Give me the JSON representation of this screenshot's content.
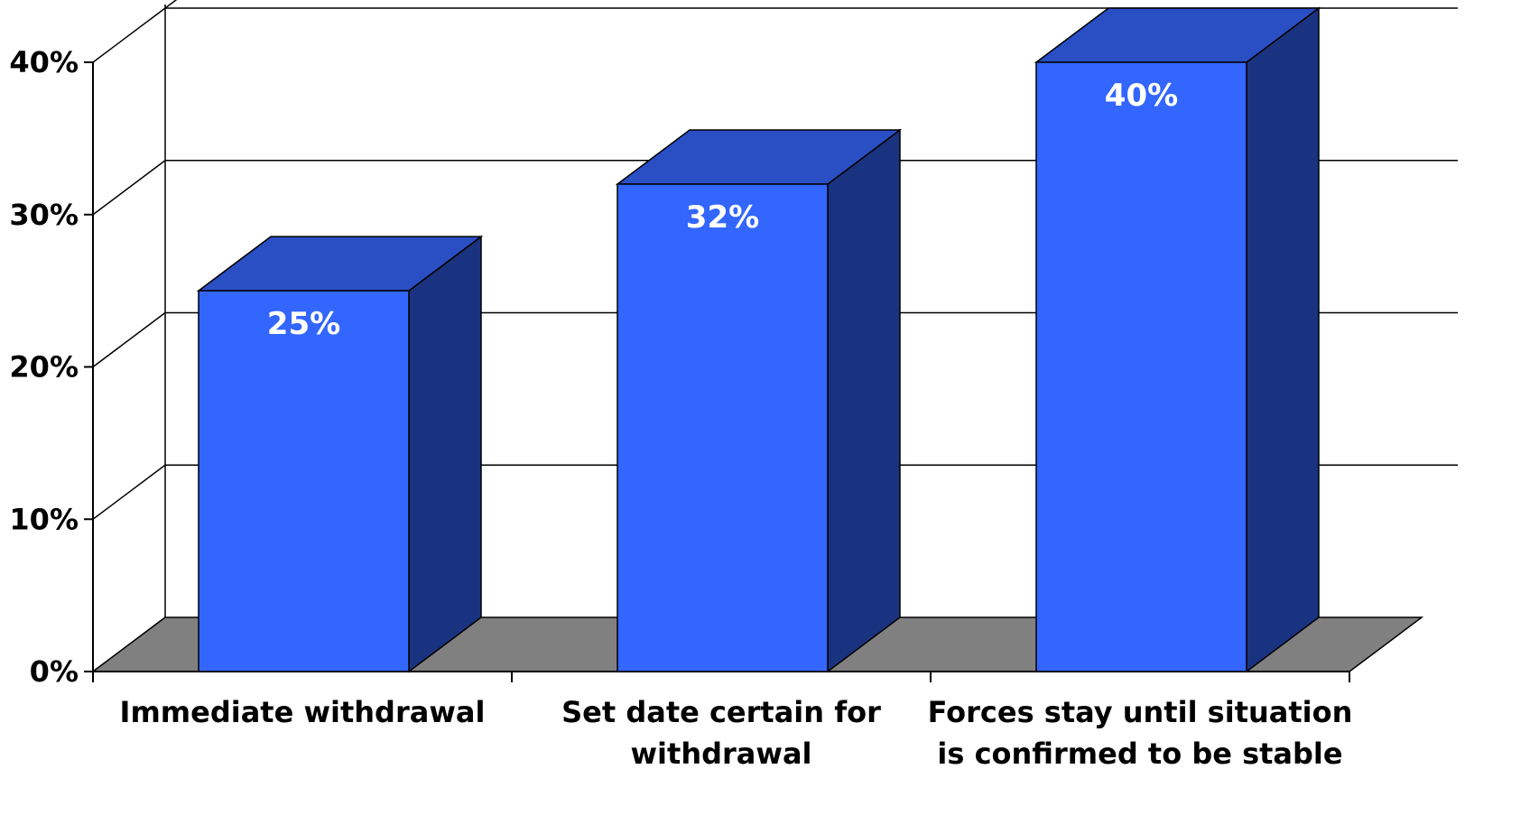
{
  "chart_data": {
    "type": "bar",
    "categories": [
      [
        "Immediate withdrawal"
      ],
      [
        "Set date certain for",
        "withdrawal"
      ],
      [
        "Forces stay until situation",
        "is confirmed to be stable"
      ]
    ],
    "values": [
      25,
      32,
      40
    ],
    "data_labels": [
      "25%",
      "32%",
      "40%"
    ],
    "ylim": [
      0,
      40
    ],
    "yticks": [
      0,
      10,
      20,
      30,
      40
    ],
    "ytick_labels": [
      "0%",
      "10%",
      "20%",
      "30%",
      "40%"
    ],
    "title": "",
    "xlabel": "",
    "ylabel": "",
    "grid": true,
    "legend": "none",
    "style": "3d-column"
  },
  "colors": {
    "bar_front": "#3366ff",
    "bar_top": "#2a4fc4",
    "bar_side": "#1a3380",
    "floor": "#808080",
    "background": "#ffffff",
    "gridline": "#000000",
    "data_label": "#ffffff"
  }
}
